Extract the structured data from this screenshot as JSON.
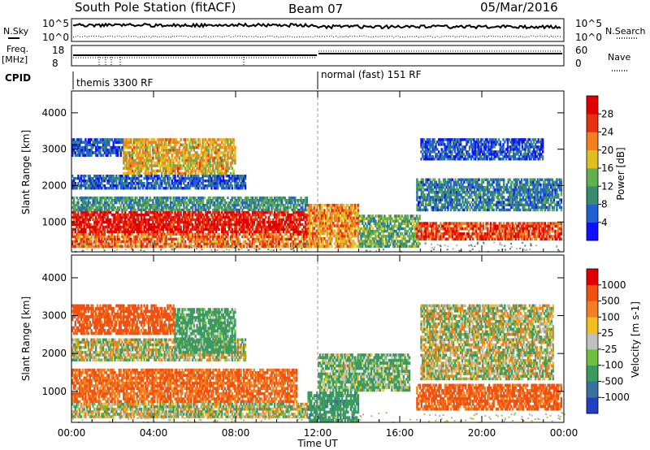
{
  "header": {
    "station": "South Pole Station (fitACF)",
    "beam": "Beam 07",
    "date": "05/Mar/2016"
  },
  "top_panels": {
    "nsky_label": "N.Sky",
    "nsky_ticks": [
      "10^5",
      "10^0"
    ],
    "nsearch_label": "N.Search",
    "nsearch_ticks": [
      "10^5",
      "10^0"
    ],
    "freq_label_1": "Freq.",
    "freq_label_2": "[MHz]",
    "freq_ticks": [
      "18",
      "8"
    ],
    "nave_label": "Nave",
    "nave_ticks": [
      "60",
      "0"
    ],
    "cpid_label": "CPID",
    "cpid_segments": [
      {
        "label": "themis 3300 RF",
        "start_hour": 0,
        "end_hour": 12
      },
      {
        "label": "normal (fast) 151 RF",
        "start_hour": 12,
        "end_hour": 24
      }
    ]
  },
  "chart_data": [
    {
      "type": "heatmap",
      "title": "",
      "xlabel": "Time UT",
      "ylabel": "Slant Range [km]",
      "x_ticks": [
        "00:00",
        "04:00",
        "08:00",
        "12:00",
        "16:00",
        "20:00",
        "00:00"
      ],
      "x_range_hours": [
        0,
        24
      ],
      "y_ticks": [
        "1000",
        "2000",
        "3000",
        "4000"
      ],
      "ylim": [
        180,
        4600
      ],
      "colorbar": {
        "label": "Power [dB]",
        "ticks": [
          "4",
          "8",
          "12",
          "16",
          "20",
          "24",
          "28"
        ],
        "range": [
          0,
          30
        ],
        "colors": [
          "#1010ff",
          "#2060d0",
          "#3a8c70",
          "#60b050",
          "#e0c020",
          "#f08020",
          "#e83010",
          "#e00000"
        ]
      },
      "echo_regions": [
        {
          "t0": 0.0,
          "t1": 11.5,
          "r0": 300,
          "r1": 700,
          "value": 22
        },
        {
          "t0": 0.0,
          "t1": 11.5,
          "r0": 700,
          "r1": 1300,
          "value": 27
        },
        {
          "t0": 0.0,
          "t1": 11.5,
          "r0": 1300,
          "r1": 1700,
          "value": 10
        },
        {
          "t0": 0.0,
          "t1": 8.5,
          "r0": 1900,
          "r1": 2300,
          "value": 6
        },
        {
          "t0": 2.5,
          "t1": 8.0,
          "r0": 2300,
          "r1": 3300,
          "value": 18
        },
        {
          "t0": 0.0,
          "t1": 2.5,
          "r0": 2800,
          "r1": 3300,
          "value": 5
        },
        {
          "t0": 11.5,
          "t1": 14.0,
          "r0": 300,
          "r1": 1500,
          "value": 20
        },
        {
          "t0": 14.0,
          "t1": 17.0,
          "r0": 300,
          "r1": 1200,
          "value": 12
        },
        {
          "t0": 16.8,
          "t1": 23.9,
          "r0": 500,
          "r1": 1000,
          "value": 24
        },
        {
          "t0": 16.8,
          "t1": 23.9,
          "r0": 1300,
          "r1": 2200,
          "value": 8
        },
        {
          "t0": 17.0,
          "t1": 23.0,
          "r0": 2700,
          "r1": 3300,
          "value": 5
        }
      ]
    },
    {
      "type": "heatmap",
      "title": "",
      "xlabel": "Time UT",
      "ylabel": "Slant Range [km]",
      "x_ticks": [
        "00:00",
        "04:00",
        "08:00",
        "12:00",
        "16:00",
        "20:00",
        "00:00"
      ],
      "x_range_hours": [
        0,
        24
      ],
      "y_ticks": [
        "1000",
        "2000",
        "3000",
        "4000"
      ],
      "ylim": [
        180,
        4600
      ],
      "colorbar": {
        "label": "Velocity [m s-1]",
        "ticks": [
          "1000",
          "500",
          "100",
          "25",
          "-25",
          "-100",
          "-500",
          "-1000"
        ],
        "colors": [
          "#2040c0",
          "#3a70a0",
          "#3a9a60",
          "#70c040",
          "#c0c0c0",
          "#f0c020",
          "#f08020",
          "#f05010",
          "#e00000"
        ]
      },
      "echo_regions": [
        {
          "t0": 0.0,
          "t1": 11.5,
          "r0": 300,
          "r1": 700,
          "value": 0
        },
        {
          "t0": 0.0,
          "t1": 11.0,
          "r0": 700,
          "r1": 1600,
          "value": -300
        },
        {
          "t0": 0.0,
          "t1": 8.5,
          "r0": 1800,
          "r1": 2400,
          "value": 0
        },
        {
          "t0": 5.0,
          "t1": 8.0,
          "r0": 2000,
          "r1": 3200,
          "value": 150
        },
        {
          "t0": 0.0,
          "t1": 5.0,
          "r0": 2500,
          "r1": 3300,
          "value": -400
        },
        {
          "t0": 11.5,
          "t1": 14.0,
          "r0": 200,
          "r1": 1000,
          "value": 200
        },
        {
          "t0": 12.0,
          "t1": 16.5,
          "r0": 1000,
          "r1": 2000,
          "value": 80
        },
        {
          "t0": 16.8,
          "t1": 23.9,
          "r0": 500,
          "r1": 1200,
          "value": -350
        },
        {
          "t0": 17.0,
          "t1": 23.5,
          "r0": 1300,
          "r1": 3300,
          "value": 0
        }
      ]
    }
  ]
}
